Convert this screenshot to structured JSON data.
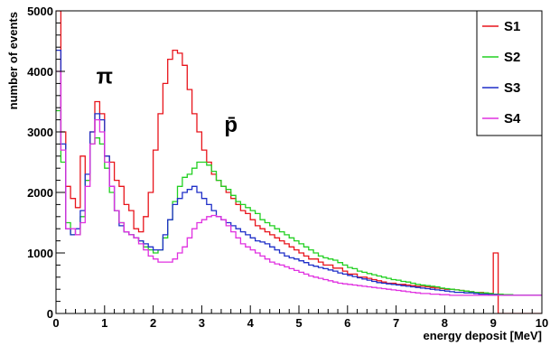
{
  "chart_data": {
    "type": "line",
    "title": "",
    "xlabel": "energy deposit [MeV]",
    "ylabel": "number of events",
    "xlim": [
      0,
      10
    ],
    "ylim": [
      0,
      5000
    ],
    "x_ticks": [
      "0",
      "1",
      "2",
      "3",
      "4",
      "5",
      "6",
      "7",
      "8",
      "9",
      "10"
    ],
    "y_ticks": [
      "0",
      "1000",
      "2000",
      "3000",
      "4000",
      "5000"
    ],
    "grid": false,
    "legend_position": "top-right",
    "annotations": [
      {
        "label": "π",
        "x": 1.0,
        "y": 3800
      },
      {
        "label": "p̄",
        "x": 3.6,
        "y": 3000
      }
    ],
    "x": [
      0.05,
      0.15,
      0.25,
      0.35,
      0.45,
      0.55,
      0.65,
      0.75,
      0.85,
      0.95,
      1.05,
      1.15,
      1.25,
      1.35,
      1.45,
      1.55,
      1.65,
      1.75,
      1.85,
      1.95,
      2.05,
      2.15,
      2.25,
      2.35,
      2.45,
      2.55,
      2.65,
      2.75,
      2.85,
      2.95,
      3.05,
      3.15,
      3.25,
      3.35,
      3.45,
      3.55,
      3.65,
      3.75,
      3.85,
      3.95,
      4.05,
      4.15,
      4.25,
      4.35,
      4.45,
      4.55,
      4.65,
      4.75,
      4.85,
      4.95,
      5.05,
      5.15,
      5.25,
      5.35,
      5.45,
      5.55,
      5.65,
      5.75,
      5.85,
      5.95,
      6.05,
      6.15,
      6.25,
      6.35,
      6.45,
      6.55,
      6.65,
      6.75,
      6.85,
      6.95,
      7.05,
      7.15,
      7.25,
      7.35,
      7.45,
      7.55,
      7.65,
      7.75,
      7.85,
      7.95,
      8.05,
      8.15,
      8.25,
      8.35,
      8.45,
      8.55,
      8.65,
      8.75,
      8.85,
      8.95,
      9.05,
      9.15,
      9.25,
      9.35,
      9.45,
      9.55,
      9.65,
      9.75,
      9.85,
      9.95
    ],
    "series": [
      {
        "name": "S1",
        "color": "#e8141b",
        "values": [
          5000,
          3000,
          2100,
          1900,
          1750,
          2600,
          2200,
          3000,
          3500,
          3300,
          2600,
          2500,
          2200,
          2100,
          1800,
          1700,
          1400,
          1350,
          1600,
          2000,
          2700,
          3300,
          3800,
          4200,
          4350,
          4300,
          4100,
          3700,
          3300,
          3000,
          2700,
          2500,
          2300,
          2200,
          2100,
          2000,
          1900,
          1800,
          1700,
          1650,
          1550,
          1450,
          1400,
          1350,
          1300,
          1250,
          1200,
          1150,
          1100,
          1050,
          1000,
          950,
          900,
          900,
          850,
          800,
          800,
          750,
          750,
          700,
          650,
          650,
          600,
          600,
          580,
          560,
          540,
          520,
          500,
          500,
          480,
          480,
          470,
          460,
          450,
          450,
          440,
          430,
          420,
          410,
          400,
          400,
          390,
          380,
          370,
          360,
          350,
          350,
          340,
          330,
          1000,
          0,
          0,
          0,
          0,
          0,
          0,
          0,
          0,
          0
        ]
      },
      {
        "name": "S2",
        "color": "#22d022",
        "values": [
          3350,
          2500,
          1500,
          1300,
          1300,
          1600,
          2200,
          2800,
          2900,
          2800,
          2400,
          2000,
          1700,
          1500,
          1350,
          1300,
          1250,
          1200,
          1100,
          1050,
          1000,
          1050,
          1250,
          1550,
          1850,
          2100,
          2250,
          2300,
          2400,
          2500,
          2500,
          2450,
          2350,
          2200,
          2100,
          2050,
          1950,
          1850,
          1800,
          1750,
          1700,
          1650,
          1550,
          1500,
          1450,
          1400,
          1350,
          1300,
          1250,
          1200,
          1150,
          1100,
          1050,
          1000,
          950,
          920,
          900,
          880,
          840,
          800,
          760,
          740,
          700,
          680,
          660,
          640,
          620,
          600,
          580,
          560,
          550,
          530,
          520,
          500,
          480,
          470,
          460,
          450,
          440,
          420,
          410,
          400,
          390,
          380,
          370,
          360,
          350,
          340,
          340,
          330,
          320,
          320,
          310,
          310,
          300,
          300,
          300,
          300,
          300,
          300
        ]
      },
      {
        "name": "S3",
        "color": "#1f2fc8",
        "values": [
          4350,
          2800,
          1400,
          1300,
          1400,
          1700,
          2300,
          3000,
          3300,
          3200,
          2600,
          2100,
          1700,
          1450,
          1350,
          1300,
          1250,
          1200,
          1150,
          1100,
          1050,
          1050,
          1300,
          1550,
          1800,
          1900,
          2000,
          2050,
          2100,
          2000,
          1900,
          1800,
          1700,
          1600,
          1550,
          1500,
          1450,
          1400,
          1350,
          1300,
          1250,
          1200,
          1180,
          1150,
          1100,
          1050,
          1000,
          950,
          920,
          900,
          870,
          840,
          800,
          780,
          760,
          740,
          720,
          700,
          670,
          650,
          630,
          610,
          590,
          570,
          550,
          530,
          510,
          500,
          490,
          480,
          470,
          460,
          450,
          440,
          430,
          420,
          410,
          400,
          390,
          380,
          370,
          360,
          350,
          350,
          340,
          340,
          330,
          320,
          320,
          310,
          310,
          300,
          300,
          300,
          300,
          300,
          300,
          300,
          300,
          300
        ]
      },
      {
        "name": "S4",
        "color": "#e030e0",
        "values": [
          4000,
          2700,
          1400,
          1400,
          1300,
          1500,
          2100,
          2800,
          3200,
          3000,
          2500,
          2100,
          1700,
          1500,
          1350,
          1300,
          1250,
          1150,
          1050,
          950,
          900,
          850,
          850,
          850,
          900,
          1000,
          1100,
          1250,
          1400,
          1500,
          1550,
          1600,
          1620,
          1600,
          1550,
          1450,
          1350,
          1250,
          1150,
          1100,
          1050,
          1000,
          950,
          900,
          850,
          820,
          800,
          770,
          740,
          710,
          680,
          650,
          620,
          600,
          580,
          560,
          540,
          520,
          500,
          490,
          480,
          470,
          460,
          450,
          440,
          430,
          420,
          410,
          400,
          390,
          380,
          370,
          360,
          350,
          340,
          330,
          330,
          320,
          320,
          310,
          310,
          300,
          300,
          300,
          300,
          300,
          300,
          300,
          300,
          300,
          300,
          300,
          300,
          300,
          300,
          300,
          300,
          300,
          300,
          300
        ]
      }
    ]
  }
}
